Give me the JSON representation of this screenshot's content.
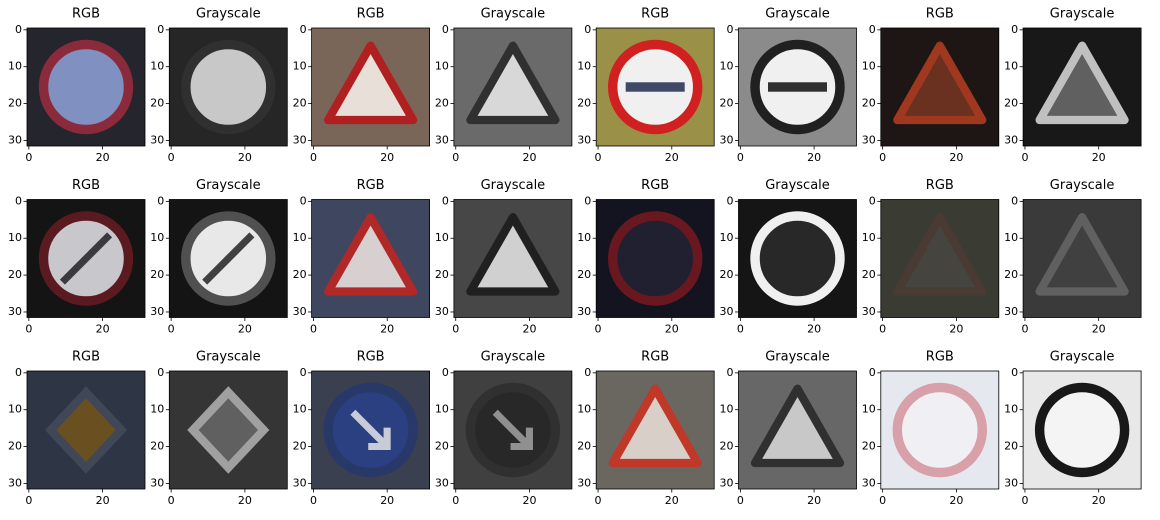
{
  "panels": [
    {
      "title": "RGB"
    },
    {
      "title": "Grayscale"
    },
    {
      "title": "RGB"
    },
    {
      "title": "Grayscale"
    },
    {
      "title": "RGB"
    },
    {
      "title": "Grayscale"
    },
    {
      "title": "RGB"
    },
    {
      "title": "Grayscale"
    },
    {
      "title": "RGB"
    },
    {
      "title": "Grayscale"
    },
    {
      "title": "RGB"
    },
    {
      "title": "Grayscale"
    },
    {
      "title": "RGB"
    },
    {
      "title": "Grayscale"
    },
    {
      "title": "RGB"
    },
    {
      "title": "Grayscale"
    },
    {
      "title": "RGB"
    },
    {
      "title": "Grayscale"
    },
    {
      "title": "RGB"
    },
    {
      "title": "Grayscale"
    },
    {
      "title": "RGB"
    },
    {
      "title": "Grayscale"
    },
    {
      "title": "RGB"
    },
    {
      "title": "Grayscale"
    }
  ],
  "yticks": [
    0,
    10,
    20,
    30
  ],
  "xticks": [
    0,
    20
  ]
}
